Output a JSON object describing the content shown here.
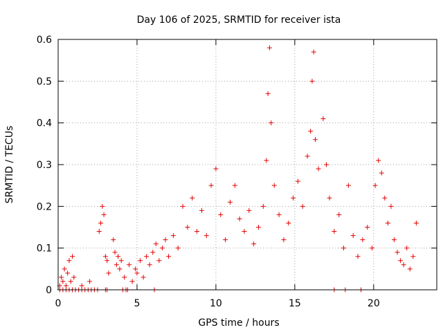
{
  "chart_data": {
    "type": "scatter",
    "title": "Day 106 of 2025, SRMTID for receiver ista",
    "xlabel": "GPS time / hours",
    "ylabel": "SRMTID / TECUs",
    "xlim": [
      0,
      24
    ],
    "ylim": [
      0,
      0.6
    ],
    "xticks": [
      0,
      5,
      10,
      15,
      20
    ],
    "xtick_labels": [
      "0",
      "5",
      "10",
      "15",
      "20"
    ],
    "yticks": [
      0,
      0.1,
      0.2,
      0.3,
      0.4,
      0.5,
      0.6
    ],
    "ytick_labels": [
      "0",
      "0.1",
      "0.2",
      "0.3",
      "0.4",
      "0.5",
      "0.6"
    ],
    "grid": true,
    "series": [
      {
        "name": "SRMTID",
        "color": "#e60000",
        "marker": "plus",
        "x": [
          0.1,
          0.2,
          0.3,
          0.4,
          0.5,
          0.6,
          0.7,
          0.8,
          0.9,
          1.0,
          1.5,
          2.0,
          2.5,
          2.6,
          2.7,
          2.8,
          2.9,
          3.0,
          3.1,
          3.2,
          3.5,
          3.6,
          3.7,
          3.8,
          3.9,
          4.0,
          4.2,
          4.5,
          4.7,
          4.9,
          5.0,
          5.2,
          5.4,
          5.6,
          5.8,
          6.0,
          6.2,
          6.4,
          6.6,
          6.8,
          7.0,
          7.3,
          7.6,
          7.9,
          8.2,
          8.5,
          8.8,
          9.1,
          9.4,
          9.7,
          10.0,
          10.3,
          10.6,
          10.9,
          11.2,
          11.5,
          11.8,
          12.1,
          12.4,
          12.7,
          13.0,
          13.2,
          13.3,
          13.4,
          13.5,
          13.7,
          14.0,
          14.3,
          14.6,
          14.9,
          15.2,
          15.5,
          15.8,
          16.0,
          16.1,
          16.2,
          16.3,
          16.5,
          16.8,
          17.0,
          17.2,
          17.5,
          17.8,
          18.1,
          18.4,
          18.7,
          19.0,
          19.3,
          19.6,
          19.9,
          20.1,
          20.3,
          20.5,
          20.7,
          20.9,
          21.1,
          21.3,
          21.5,
          21.7,
          21.9,
          22.1,
          22.3,
          22.5,
          22.7,
          0.1,
          0.3,
          0.5,
          0.7,
          0.9,
          1.1,
          1.3,
          1.5,
          1.7,
          1.9,
          2.1,
          2.3,
          2.5,
          3.0,
          3.1,
          4.1,
          4.3,
          4.4,
          6.1,
          17.5,
          18.2,
          19.2
        ],
        "y": [
          0.01,
          0.03,
          0.02,
          0.05,
          0.01,
          0.04,
          0.07,
          0.02,
          0.08,
          0.03,
          0.01,
          0.02,
          0.0,
          0.14,
          0.16,
          0.2,
          0.18,
          0.08,
          0.07,
          0.04,
          0.12,
          0.09,
          0.06,
          0.08,
          0.05,
          0.07,
          0.03,
          0.06,
          0.02,
          0.05,
          0.04,
          0.07,
          0.03,
          0.08,
          0.06,
          0.09,
          0.11,
          0.07,
          0.1,
          0.12,
          0.08,
          0.13,
          0.1,
          0.2,
          0.15,
          0.22,
          0.14,
          0.19,
          0.13,
          0.25,
          0.29,
          0.18,
          0.12,
          0.21,
          0.25,
          0.17,
          0.14,
          0.19,
          0.11,
          0.15,
          0.2,
          0.31,
          0.47,
          0.58,
          0.4,
          0.25,
          0.18,
          0.12,
          0.16,
          0.22,
          0.26,
          0.2,
          0.32,
          0.38,
          0.5,
          0.57,
          0.36,
          0.29,
          0.41,
          0.3,
          0.22,
          0.14,
          0.18,
          0.1,
          0.25,
          0.13,
          0.08,
          0.12,
          0.15,
          0.1,
          0.25,
          0.31,
          0.28,
          0.22,
          0.16,
          0.2,
          0.12,
          0.09,
          0.07,
          0.06,
          0.1,
          0.05,
          0.08,
          0.16,
          0.0,
          0.0,
          0.0,
          0.0,
          0.0,
          0.0,
          0.0,
          0.0,
          0.0,
          0.0,
          0.0,
          0.0,
          0.0,
          0.0,
          0.0,
          0.0,
          0.0,
          0.0,
          0.0,
          0.0,
          0.0,
          0.0
        ]
      }
    ]
  }
}
